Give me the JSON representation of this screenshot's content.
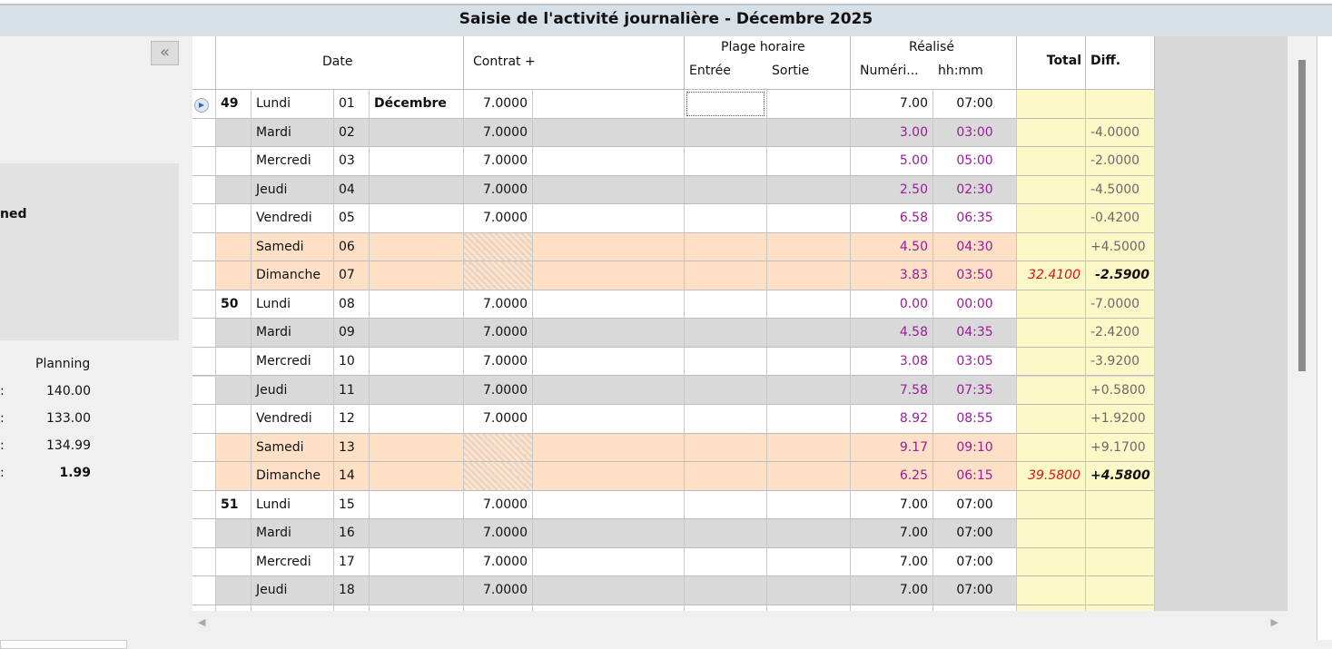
{
  "title": "Saisie de l'activité journalière - Décembre 2025",
  "left": {
    "collapse_label": "«",
    "box_text": "ned",
    "planning_header": "Planning",
    "planning": [
      {
        "sep": ":",
        "value": "140.00"
      },
      {
        "sep": ":",
        "value": "133.00"
      },
      {
        "sep": ":",
        "value": "134.99"
      },
      {
        "sep": ":",
        "value": "1.99",
        "bold": true
      }
    ]
  },
  "headers": {
    "date": "Date",
    "contrat": "Contrat  +",
    "plage": "Plage horaire",
    "entree": "Entrée",
    "sortie": "Sortie",
    "realise": "Réalisé",
    "numerique": "Numéri...",
    "hhmm": "hh:mm",
    "total": "Total",
    "diff": "Diff."
  },
  "colors": {
    "weekday_alt": "#d9d9d9",
    "weekend": "#fde0c5",
    "summary": "#fdf8c8",
    "realise": "#9a1c9a",
    "total_alert": "#e01010"
  },
  "rows": [
    {
      "week": "49",
      "day": "Lundi",
      "num": "01",
      "month": "Décembre",
      "contrat": "7.0000",
      "dec": "7.00",
      "hhmm": "07:00",
      "total": "",
      "diff": "",
      "type": "w",
      "current": true
    },
    {
      "day": "Mardi",
      "num": "02",
      "contrat": "7.0000",
      "dec": "3.00",
      "hhmm": "03:00",
      "diff": "-4.0000",
      "type": "g",
      "p": 1
    },
    {
      "day": "Mercredi",
      "num": "03",
      "contrat": "7.0000",
      "dec": "5.00",
      "hhmm": "05:00",
      "diff": "-2.0000",
      "type": "w",
      "p": 1
    },
    {
      "day": "Jeudi",
      "num": "04",
      "contrat": "7.0000",
      "dec": "2.50",
      "hhmm": "02:30",
      "diff": "-4.5000",
      "type": "g",
      "p": 1
    },
    {
      "day": "Vendredi",
      "num": "05",
      "contrat": "7.0000",
      "dec": "6.58",
      "hhmm": "06:35",
      "diff": "-0.4200",
      "type": "w",
      "p": 1
    },
    {
      "day": "Samedi",
      "num": "06",
      "contrat": "",
      "dec": "4.50",
      "hhmm": "04:30",
      "diff": "+4.5000",
      "type": "e",
      "p": 1
    },
    {
      "day": "Dimanche",
      "num": "07",
      "contrat": "",
      "dec": "3.83",
      "hhmm": "03:50",
      "total": "32.4100",
      "diff": "-2.5900",
      "type": "e",
      "p": 1,
      "sum": true
    },
    {
      "week": "50",
      "day": "Lundi",
      "num": "08",
      "contrat": "7.0000",
      "dec": "0.00",
      "hhmm": "00:00",
      "diff": "-7.0000",
      "type": "w",
      "p": 1
    },
    {
      "day": "Mardi",
      "num": "09",
      "contrat": "7.0000",
      "dec": "4.58",
      "hhmm": "04:35",
      "diff": "-2.4200",
      "type": "g",
      "p": 1
    },
    {
      "day": "Mercredi",
      "num": "10",
      "contrat": "7.0000",
      "dec": "3.08",
      "hhmm": "03:05",
      "diff": "-3.9200",
      "type": "w",
      "p": 1
    },
    {
      "day": "Jeudi",
      "num": "11",
      "contrat": "7.0000",
      "dec": "7.58",
      "hhmm": "07:35",
      "diff": "+0.5800",
      "type": "g",
      "p": 1
    },
    {
      "day": "Vendredi",
      "num": "12",
      "contrat": "7.0000",
      "dec": "8.92",
      "hhmm": "08:55",
      "diff": "+1.9200",
      "type": "w",
      "p": 1
    },
    {
      "day": "Samedi",
      "num": "13",
      "contrat": "",
      "dec": "9.17",
      "hhmm": "09:10",
      "diff": "+9.1700",
      "type": "e",
      "p": 1
    },
    {
      "day": "Dimanche",
      "num": "14",
      "contrat": "",
      "dec": "6.25",
      "hhmm": "06:15",
      "total": "39.5800",
      "diff": "+4.5800",
      "type": "e",
      "p": 1,
      "sum": true
    },
    {
      "week": "51",
      "day": "Lundi",
      "num": "15",
      "contrat": "7.0000",
      "dec": "7.00",
      "hhmm": "07:00",
      "type": "w"
    },
    {
      "day": "Mardi",
      "num": "16",
      "contrat": "7.0000",
      "dec": "7.00",
      "hhmm": "07:00",
      "type": "g"
    },
    {
      "day": "Mercredi",
      "num": "17",
      "contrat": "7.0000",
      "dec": "7.00",
      "hhmm": "07:00",
      "type": "w"
    },
    {
      "day": "Jeudi",
      "num": "18",
      "contrat": "7.0000",
      "dec": "7.00",
      "hhmm": "07:00",
      "type": "g"
    },
    {
      "day": "",
      "num": "",
      "contrat": "",
      "dec": "",
      "hhmm": "",
      "type": "w"
    }
  ]
}
